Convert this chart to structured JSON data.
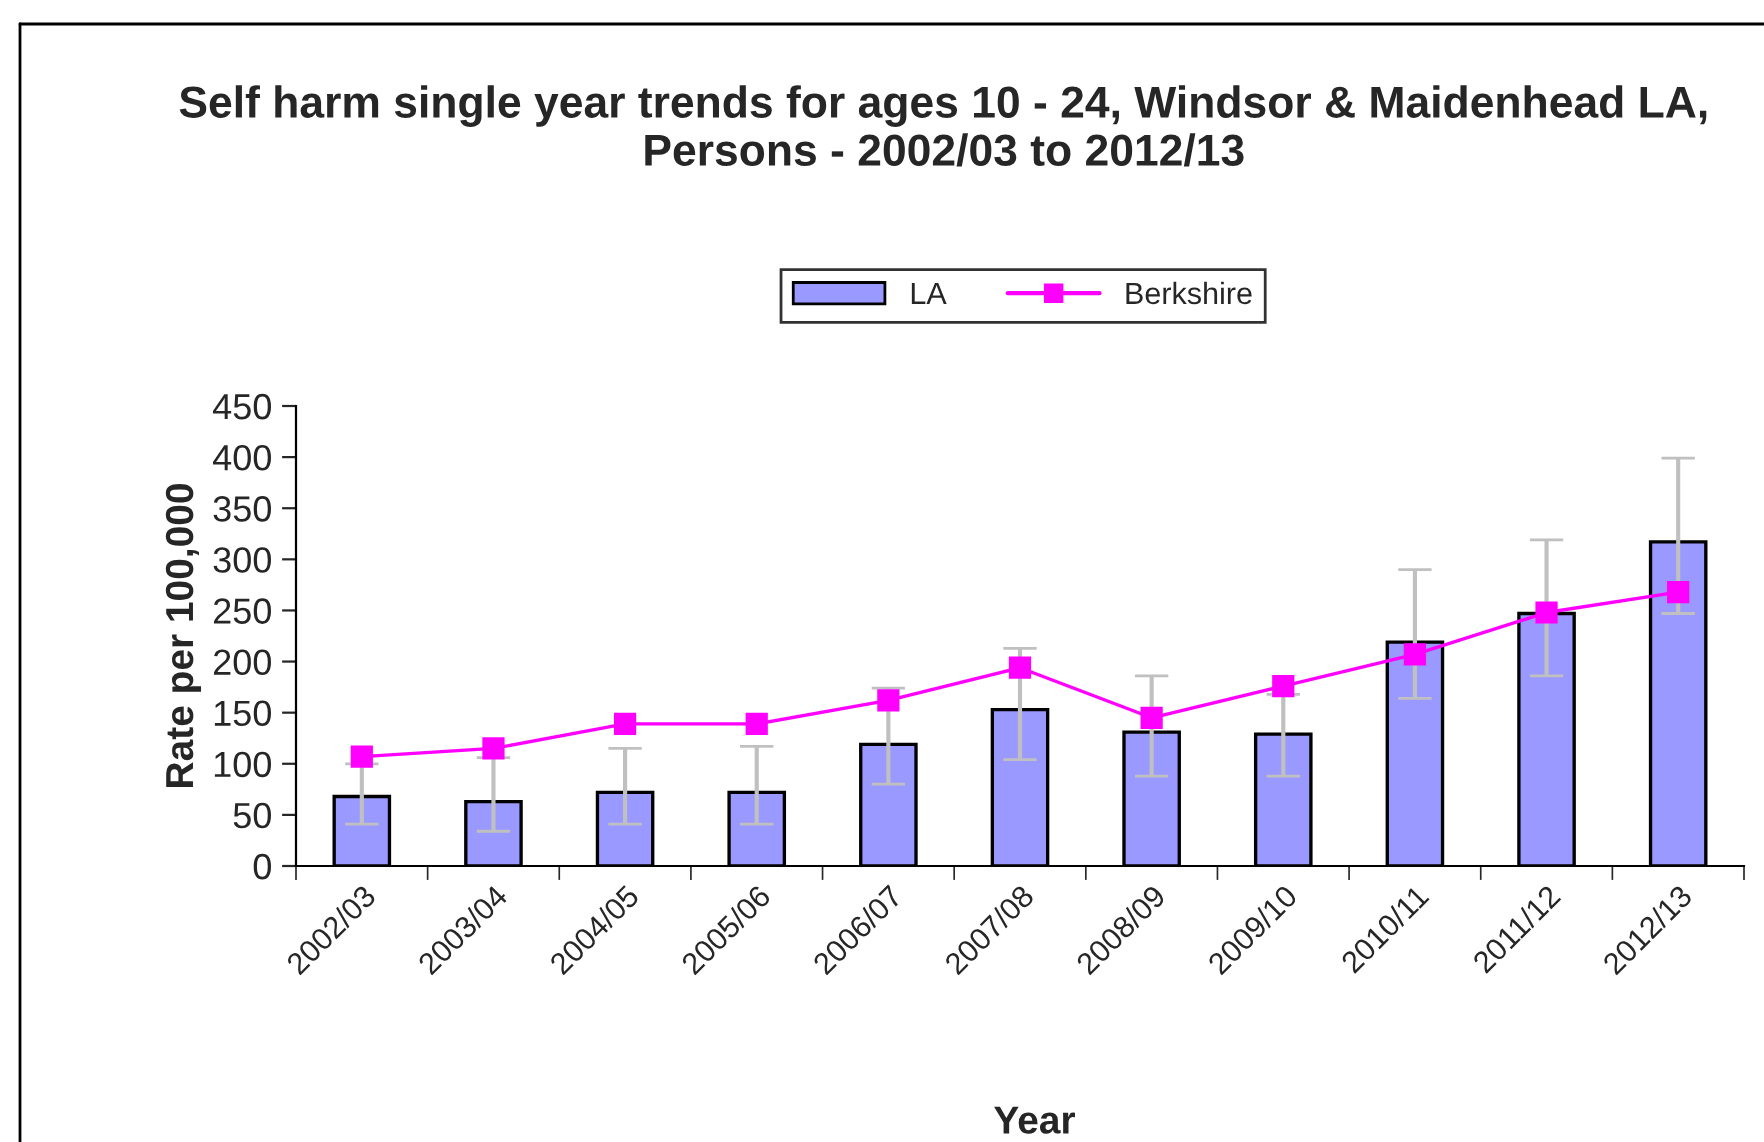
{
  "chart_data": {
    "type": "bar",
    "title": "Self harm single year trends for ages 10 - 24, Windsor & Maidenhead LA, Persons - 2002/03 to 2012/13",
    "xlabel": "Year",
    "ylabel": "Rate per 100,000",
    "categories": [
      "2002/03",
      "2003/04",
      "2004/05",
      "2005/06",
      "2006/07",
      "2007/08",
      "2008/09",
      "2009/10",
      "2010/11",
      "2011/12",
      "2012/13"
    ],
    "series": [
      {
        "name": "LA",
        "color": "#9999ff",
        "values": [
          68,
          63,
          72,
          72,
          119,
          153,
          131,
          129,
          219,
          247,
          317
        ],
        "errors": [
          [
            41,
            100
          ],
          [
            34,
            106
          ],
          [
            41,
            115
          ],
          [
            41,
            117
          ],
          [
            80,
            174
          ],
          [
            104,
            213
          ],
          [
            88,
            186
          ],
          [
            88,
            168
          ],
          [
            164,
            290
          ],
          [
            186,
            319
          ],
          [
            247,
            399
          ]
        ]
      },
      {
        "name": "Berkshire",
        "type": "line",
        "color": "#ff00ff",
        "marker": "square",
        "values": [
          107,
          115,
          139,
          139,
          162,
          194,
          145,
          176,
          207,
          248,
          268
        ]
      }
    ],
    "ylim": [
      0,
      450
    ],
    "yticks": [
      0,
      50,
      100,
      150,
      200,
      250,
      300,
      350,
      400,
      450
    ],
    "grid": false,
    "legend": "top"
  }
}
